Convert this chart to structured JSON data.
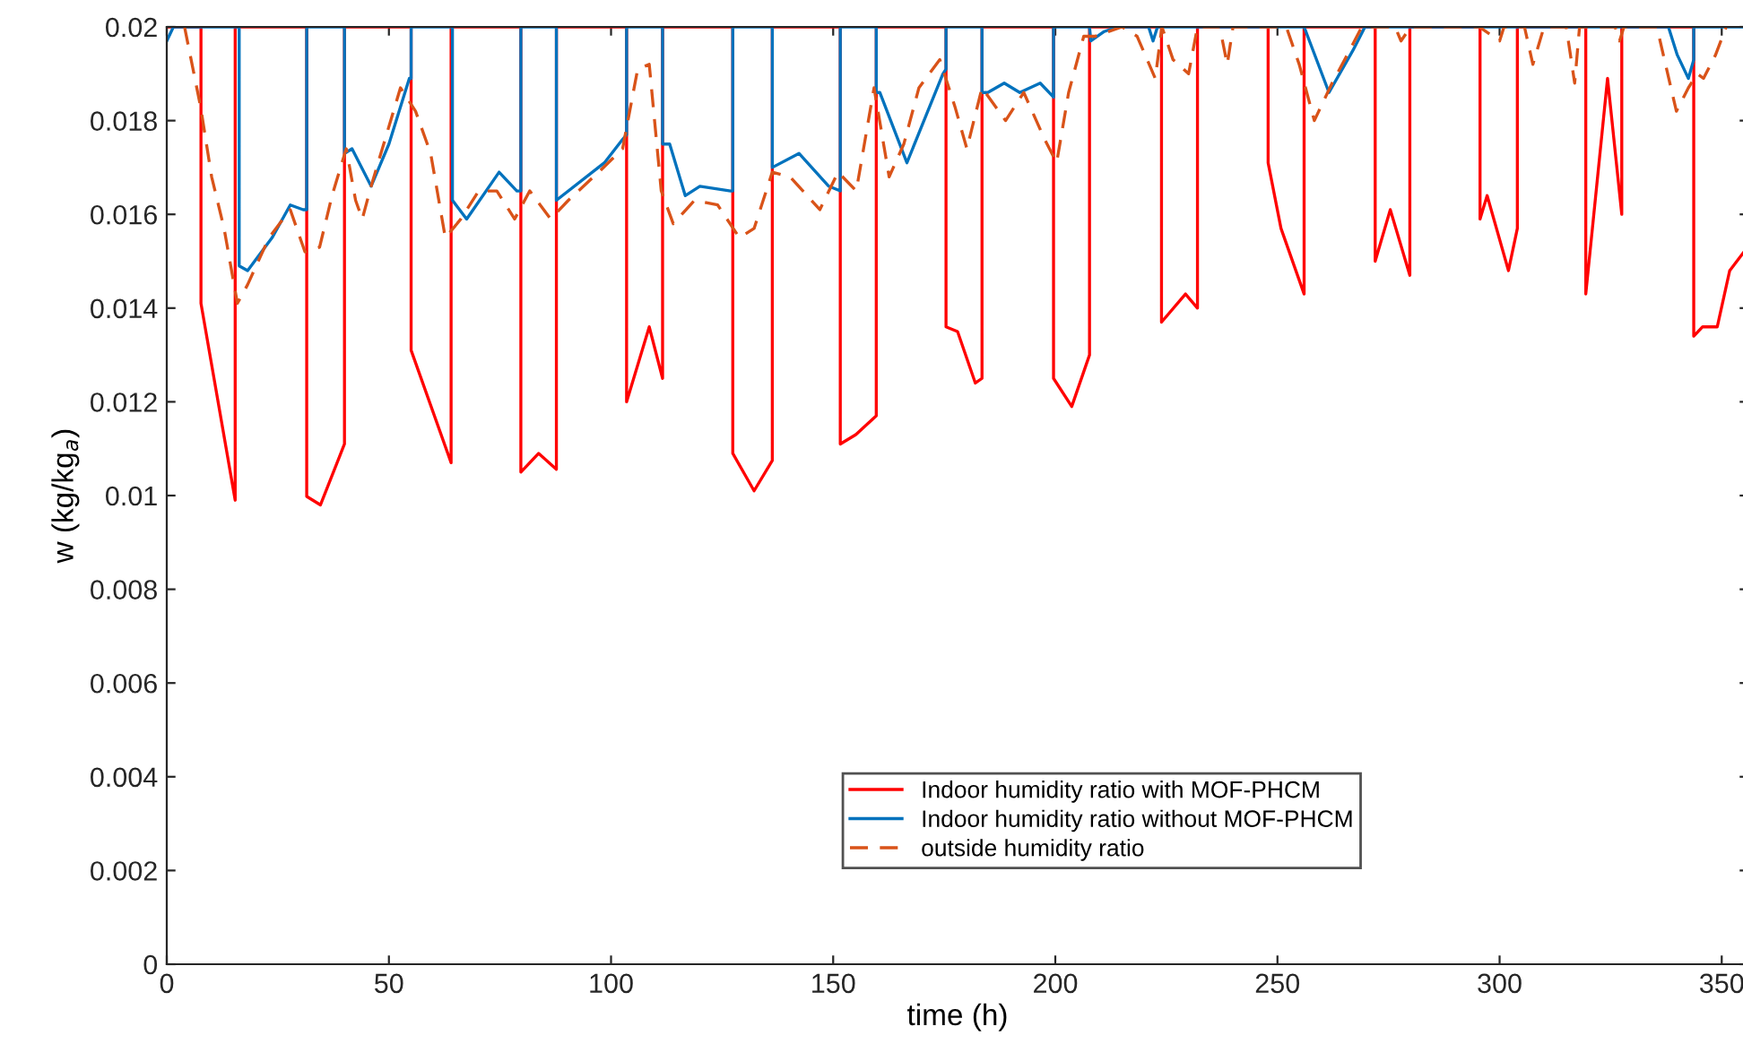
{
  "chart_data": {
    "type": "line",
    "xlabel": "time (h)",
    "ylabel": "w (kg/kg$_{a}$)",
    "xlim": [
      0,
      356
    ],
    "xticks": [
      0,
      50,
      100,
      150,
      200,
      250,
      300,
      350
    ],
    "ylim": [
      0,
      0.02
    ],
    "yticks": [
      0,
      0.002,
      0.004,
      0.006,
      0.008,
      0.01,
      0.012,
      0.014,
      0.016,
      0.018,
      0.02
    ],
    "grid": false,
    "legend": "bottom right",
    "marker": "none",
    "series": [
      {
        "name": "Indoor humidity ratio with MOF-PHCM",
        "color": "#ff0000",
        "line_style": "solid",
        "x": [
          0,
          7.7,
          7.7,
          15.4,
          15.4,
          31.5,
          31.5,
          34.6,
          40.0,
          40.0,
          55.0,
          55.0,
          64.0,
          64.0,
          79.7,
          79.7,
          83.7,
          87.7,
          87.7,
          103.5,
          103.5,
          108.6,
          111.6,
          111.6,
          127.4,
          127.4,
          132.2,
          136.3,
          136.3,
          151.6,
          151.6,
          155.1,
          159.7,
          159.7,
          175.4,
          175.4,
          178,
          182,
          183.5,
          183.5,
          199.6,
          199.6,
          203.7,
          207.7,
          207.7,
          223.9,
          223.9,
          229.3,
          232,
          232,
          247.9,
          247.9,
          250.8,
          256,
          256,
          272,
          272,
          275.4,
          279.8,
          279.8,
          295.6,
          295.6,
          297.2,
          302,
          304,
          304,
          319.4,
          319.4,
          324.3,
          327.5,
          327.5,
          343.7,
          343.7,
          345.7,
          349,
          351.8,
          355
        ],
        "values": [
          0.02,
          0.02,
          0.0141,
          0.0099,
          0.02,
          0.02,
          0.00998,
          0.0098,
          0.0111,
          0.02,
          0.02,
          0.0131,
          0.0107,
          0.02,
          0.02,
          0.0105,
          0.0109,
          0.01056,
          0.02,
          0.02,
          0.012,
          0.0136,
          0.0125,
          0.02,
          0.02,
          0.0109,
          0.0101,
          0.01075,
          0.02,
          0.02,
          0.0111,
          0.0113,
          0.0117,
          0.02,
          0.02,
          0.0136,
          0.0135,
          0.0124,
          0.0125,
          0.02,
          0.02,
          0.0125,
          0.0119,
          0.013,
          0.02,
          0.02,
          0.0137,
          0.0143,
          0.014,
          0.02,
          0.02,
          0.0171,
          0.0157,
          0.0143,
          0.02,
          0.02,
          0.015,
          0.0161,
          0.0147,
          0.02,
          0.02,
          0.0159,
          0.0164,
          0.0148,
          0.0157,
          0.02,
          0.02,
          0.0143,
          0.0189,
          0.016,
          0.02,
          0.02,
          0.0134,
          0.0136,
          0.0136,
          0.0148,
          0.0152
        ]
      },
      {
        "name": "Indoor humidity ratio without MOF-PHCM",
        "color": "#0072bd",
        "line_style": "solid",
        "x": [
          0,
          1.5,
          16.3,
          16.3,
          18.2,
          23.7,
          27.8,
          30.7,
          31.5,
          31.5,
          40,
          40,
          41.7,
          46,
          50,
          54.6,
          55,
          55,
          64.3,
          64.3,
          67.5,
          74.8,
          78.8,
          79.7,
          79.7,
          87.7,
          87.7,
          98.5,
          102.6,
          103.5,
          103.5,
          111.6,
          111.6,
          113.2,
          116.7,
          120,
          126.9,
          127.4,
          127.4,
          136.3,
          136.3,
          142.3,
          149,
          151.6,
          151.6,
          159.7,
          159.7,
          160.5,
          166.6,
          174.7,
          175.4,
          175.4,
          183.5,
          183.5,
          184.8,
          188.5,
          192,
          196.6,
          199.6,
          199.6,
          207.7,
          208,
          211,
          214,
          221,
          222,
          223,
          256,
          261.6,
          267,
          269.7,
          338,
          340,
          342.5,
          343.7,
          343.7,
          355
        ],
        "values": [
          0.0197,
          0.02,
          0.02,
          0.0149,
          0.0148,
          0.0155,
          0.0162,
          0.0161,
          0.0161,
          0.02,
          0.02,
          0.0173,
          0.0174,
          0.0166,
          0.0175,
          0.0189,
          0.0189,
          0.02,
          0.02,
          0.0163,
          0.0159,
          0.0169,
          0.0165,
          0.0165,
          0.02,
          0.02,
          0.0163,
          0.0171,
          0.0176,
          0.0177,
          0.02,
          0.02,
          0.0175,
          0.0175,
          0.0164,
          0.0166,
          0.0165,
          0.0165,
          0.02,
          0.02,
          0.017,
          0.0173,
          0.0166,
          0.0165,
          0.02,
          0.02,
          0.0186,
          0.0186,
          0.0171,
          0.019,
          0.0191,
          0.02,
          0.02,
          0.0186,
          0.0186,
          0.0188,
          0.0186,
          0.0188,
          0.0185,
          0.02,
          0.02,
          0.0197,
          0.0199,
          0.02,
          0.02,
          0.0197,
          0.02,
          0.02,
          0.0186,
          0.0195,
          0.02,
          0.02,
          0.0194,
          0.0189,
          0.0193,
          0.02,
          0.02
        ]
      },
      {
        "name": "outside humidity ratio",
        "color": "#d95319",
        "line_style": "dashed",
        "x": [
          4,
          7.6,
          10.1,
          12.9,
          15.9,
          18.2,
          23,
          27.8,
          31.1,
          34.4,
          37.2,
          40.4,
          42.5,
          44,
          46,
          52.6,
          56,
          59.4,
          62.7,
          66.2,
          70.2,
          74.3,
          78.3,
          81.7,
          86.4,
          90.4,
          97.2,
          102.6,
          106,
          108.6,
          111.3,
          114,
          118.8,
          124,
          128.9,
          132.2,
          136.3,
          140.3,
          147,
          151.1,
          155.2,
          159.2,
          162.6,
          165.9,
          169.3,
          174,
          177.4,
          180.1,
          183.5,
          188.8,
          192.9,
          197.6,
          200.3,
          203,
          206.4,
          209,
          215,
          218.4,
          222.5,
          224,
          226.5,
          230,
          232,
          237,
          238.7,
          240,
          252,
          254.9,
          258.3,
          262.3,
          265.7,
          269,
          276.5,
          277.8,
          280,
          295.4,
          300,
          301,
          305.6,
          307.5,
          310,
          315,
          316.9,
          318,
          326,
          327,
          328,
          335.4,
          339.8,
          342.5,
          344.5,
          345.9,
          348.6,
          351
        ],
        "values": [
          0.02,
          0.0183,
          0.0168,
          0.0157,
          0.0141,
          0.0145,
          0.0155,
          0.0161,
          0.0152,
          0.0153,
          0.0164,
          0.0174,
          0.0163,
          0.0159,
          0.0166,
          0.0187,
          0.0182,
          0.0173,
          0.0155,
          0.0159,
          0.0165,
          0.0165,
          0.0159,
          0.0165,
          0.0159,
          0.0163,
          0.0169,
          0.0174,
          0.0191,
          0.0192,
          0.0165,
          0.0158,
          0.0163,
          0.0162,
          0.0155,
          0.0157,
          0.0169,
          0.0168,
          0.0161,
          0.0169,
          0.0165,
          0.0187,
          0.0168,
          0.0175,
          0.0187,
          0.0193,
          0.0183,
          0.0174,
          0.0187,
          0.018,
          0.0186,
          0.0176,
          0.0171,
          0.0186,
          0.0198,
          0.0198,
          0.02,
          0.0198,
          0.0189,
          0.02,
          0.0193,
          0.019,
          0.02,
          0.02,
          0.0192,
          0.02,
          0.02,
          0.0192,
          0.018,
          0.0188,
          0.0194,
          0.02,
          0.02,
          0.0197,
          0.02,
          0.02,
          0.0197,
          0.02,
          0.02,
          0.0192,
          0.02,
          0.02,
          0.0188,
          0.02,
          0.02,
          0.0197,
          0.02,
          0.02,
          0.0182,
          0.0187,
          0.019,
          0.0189,
          0.0194,
          0.02
        ]
      }
    ]
  }
}
